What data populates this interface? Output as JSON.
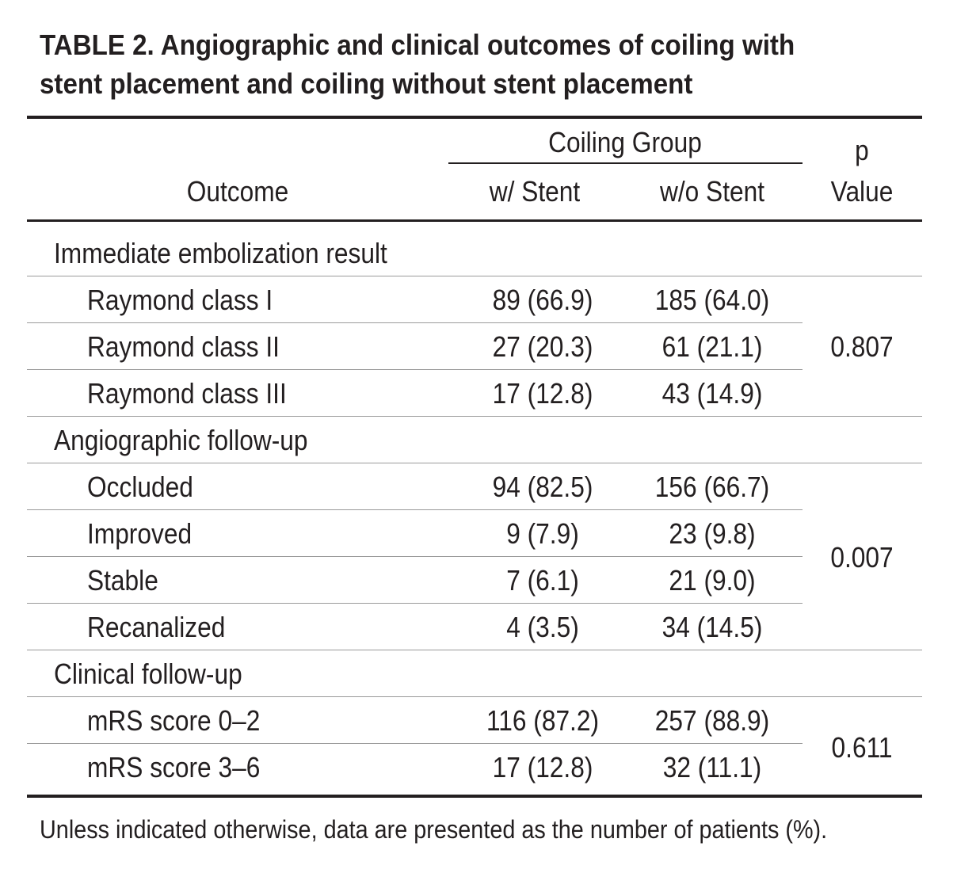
{
  "title": {
    "line1": "TABLE 2. Angiographic and clinical outcomes of coiling with",
    "line2": "stent placement and coiling without stent placement"
  },
  "header": {
    "outcome": "Outcome",
    "group": "Coiling Group",
    "with_stent": "w/ Stent",
    "without_stent": "w/o Stent",
    "p_line1": "p",
    "p_line2": "Value"
  },
  "sections": [
    {
      "label": "Immediate embolization result",
      "rows": [
        {
          "outcome": "Raymond class I",
          "with": "89 (66.9)",
          "without": "185 (64.0)"
        },
        {
          "outcome": "Raymond class II",
          "with": "27 (20.3)",
          "without": "61 (21.1)"
        },
        {
          "outcome": "Raymond class III",
          "with": "17 (12.8)",
          "without": "43 (14.9)"
        }
      ],
      "p": "0.807"
    },
    {
      "label": "Angiographic follow-up",
      "rows": [
        {
          "outcome": "Occluded",
          "with": "94 (82.5)",
          "without": "156 (66.7)"
        },
        {
          "outcome": "Improved",
          "with": "9 (7.9)",
          "without": "23 (9.8)"
        },
        {
          "outcome": "Stable",
          "with": "7 (6.1)",
          "without": "21 (9.0)"
        },
        {
          "outcome": "Recanalized",
          "with": "4 (3.5)",
          "without": "34 (14.5)"
        }
      ],
      "p": "0.007"
    },
    {
      "label": "Clinical follow-up",
      "rows": [
        {
          "outcome": "mRS score 0–2",
          "with": "116 (87.2)",
          "without": "257 (88.9)"
        },
        {
          "outcome": "mRS score 3–6",
          "with": "17 (12.8)",
          "without": "32 (11.1)"
        }
      ],
      "p": "0.611"
    }
  ],
  "footnote": "Unless indicated otherwise, data are presented as the number of patients (%)."
}
